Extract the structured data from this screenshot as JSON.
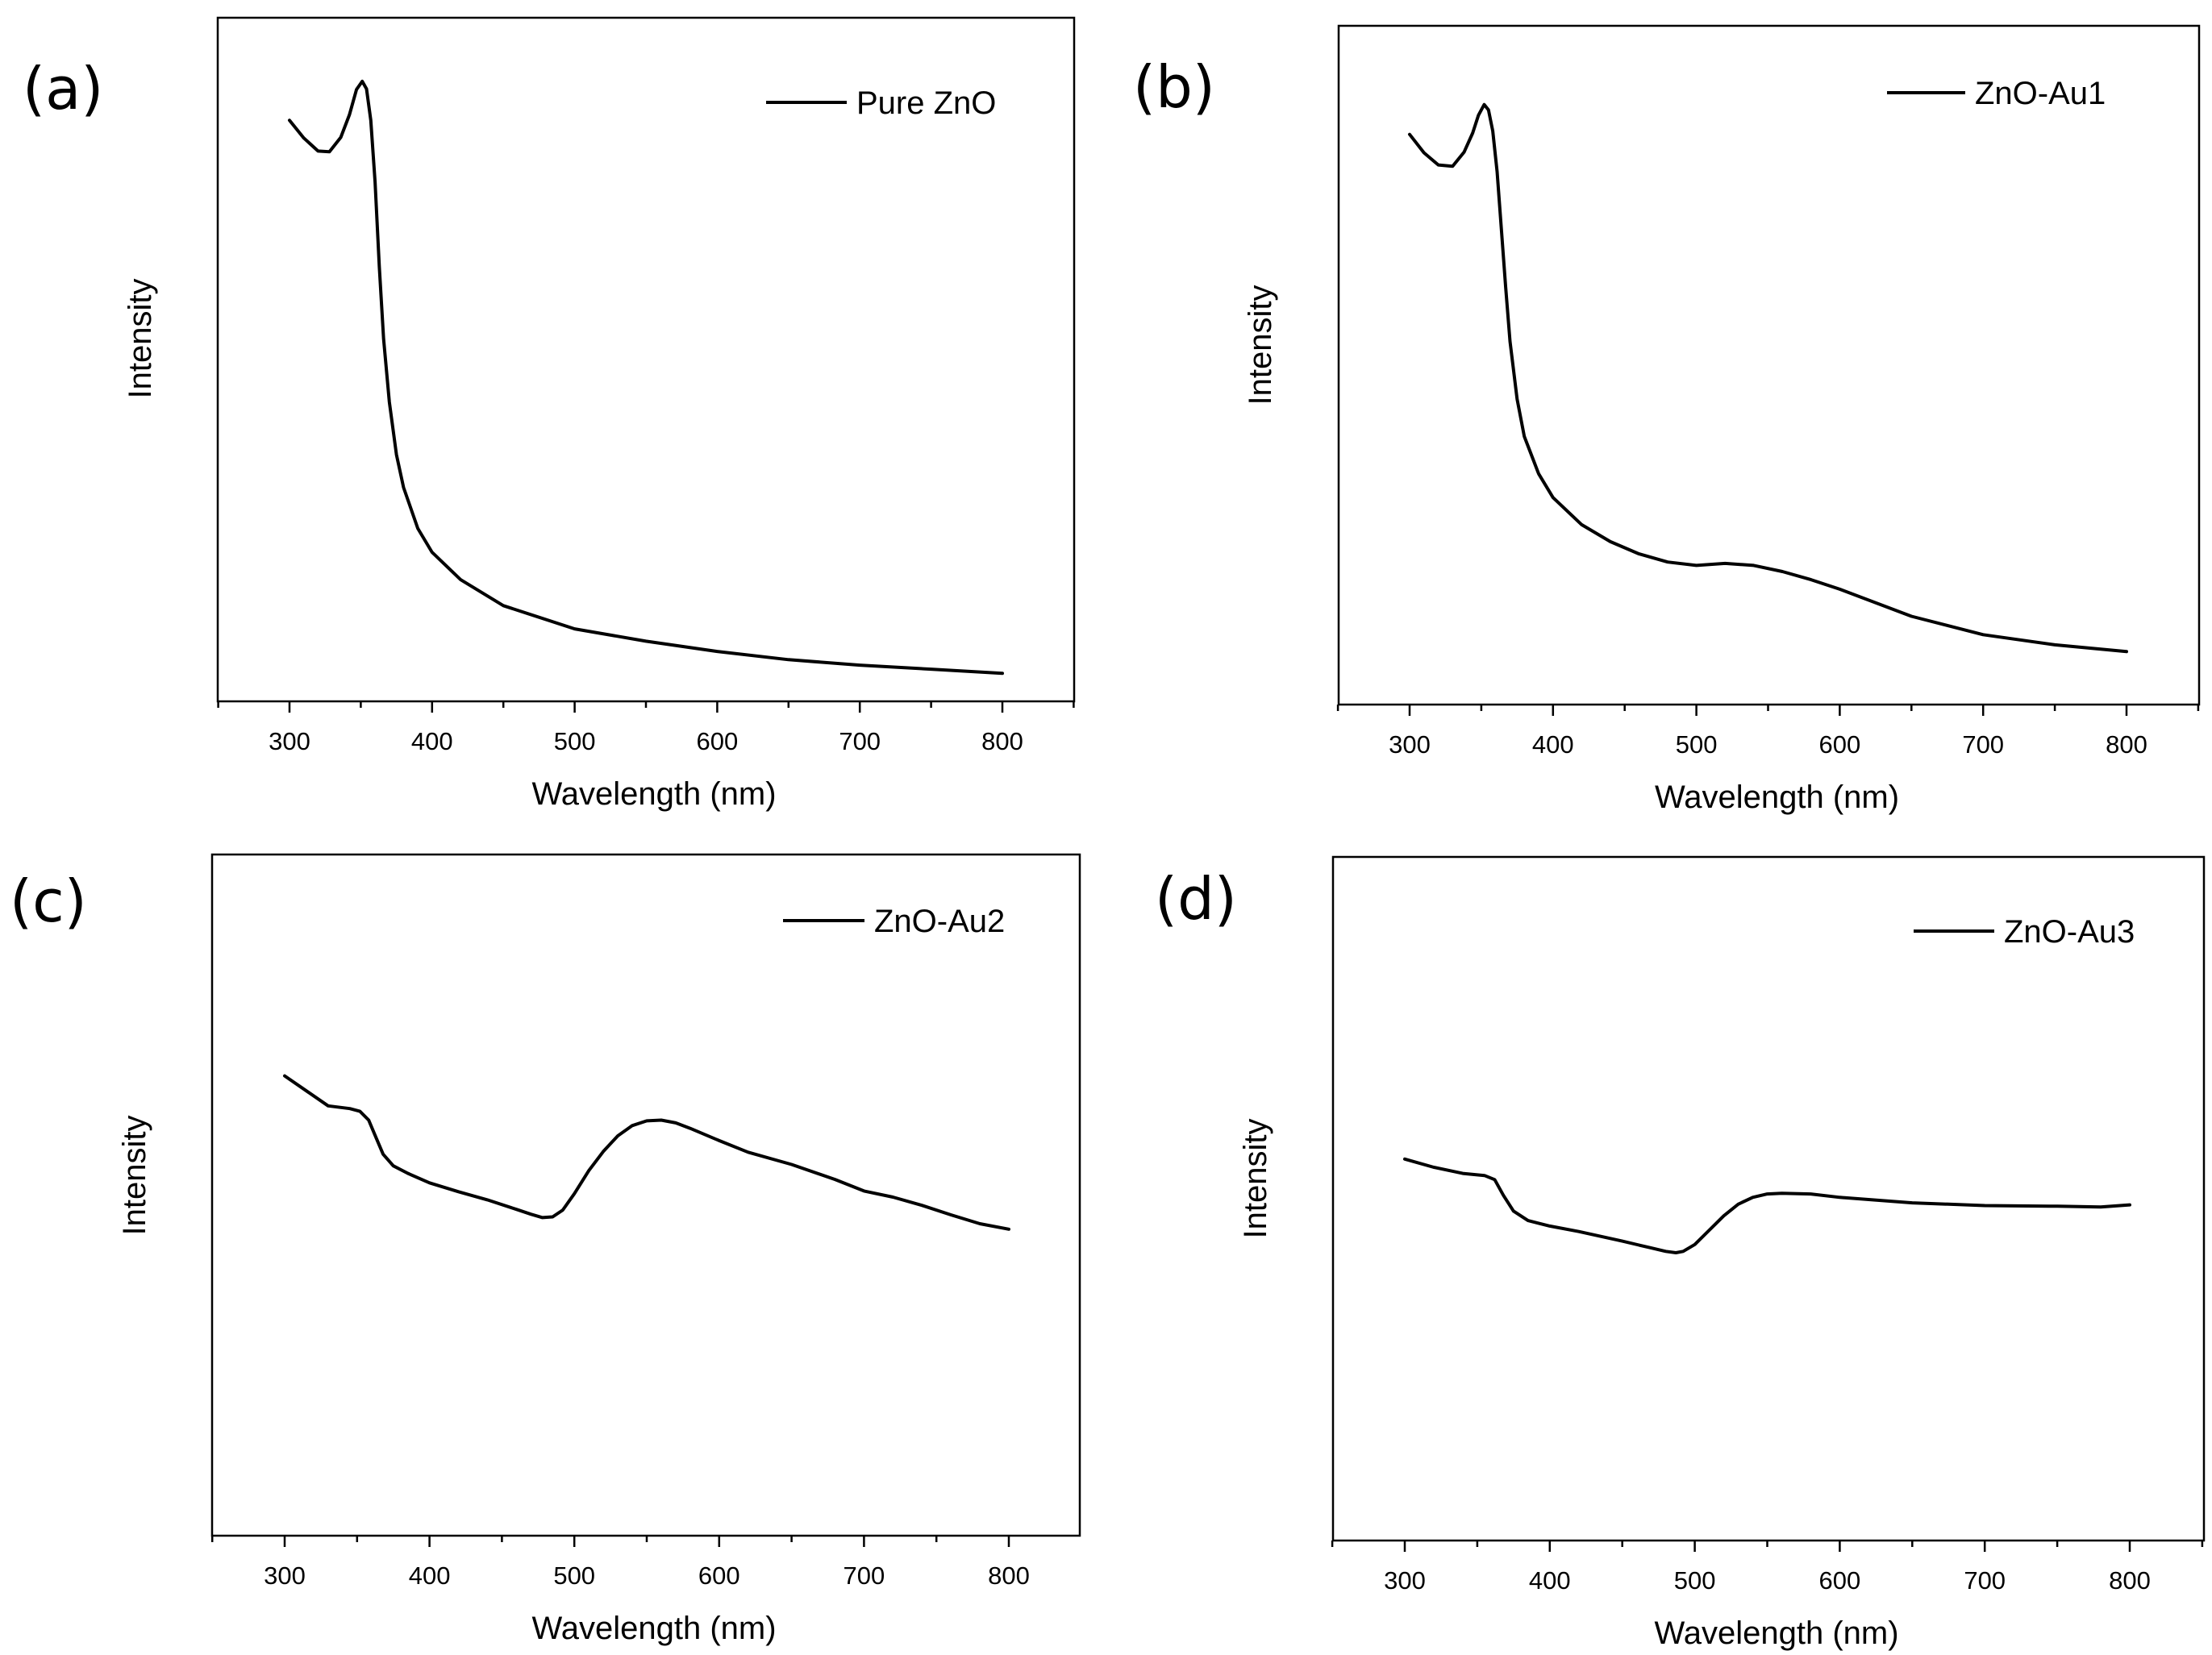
{
  "chart_data": [
    {
      "type": "line",
      "panel_label": "(a)",
      "xlabel": "Wavelength (nm)",
      "ylabel": "Intensity",
      "xlim": [
        250,
        850
      ],
      "ylim": [
        0,
        100
      ],
      "x_ticks": [
        300,
        400,
        500,
        600,
        700,
        800
      ],
      "grid": false,
      "legend_position": "top-right",
      "series": [
        {
          "name": "Pure ZnO",
          "x": [
            300,
            310,
            320,
            328,
            336,
            342,
            347,
            351,
            354,
            357,
            360,
            363,
            366,
            370,
            375,
            380,
            390,
            400,
            420,
            450,
            500,
            550,
            600,
            650,
            700,
            750,
            800
          ],
          "y": [
            85,
            82.4,
            80.5,
            80.4,
            82.5,
            85.8,
            89.5,
            90.7,
            89.6,
            85,
            76,
            63.5,
            53,
            43.8,
            36.1,
            31.3,
            25.3,
            21.8,
            17.8,
            14,
            10.6,
            8.8,
            7.3,
            6.1,
            5.3,
            4.7,
            4.1
          ]
        }
      ]
    },
    {
      "type": "line",
      "panel_label": "(b)",
      "xlabel": "Wavelength (nm)",
      "ylabel": "Intensity",
      "xlim": [
        250,
        850
      ],
      "ylim": [
        0,
        100
      ],
      "x_ticks": [
        300,
        400,
        500,
        600,
        700,
        800
      ],
      "grid": false,
      "legend_position": "top-right",
      "series": [
        {
          "name": "ZnO-Au1",
          "x": [
            300,
            310,
            320,
            330,
            338,
            344,
            348,
            352,
            355,
            358,
            361,
            364,
            367,
            370,
            375,
            380,
            390,
            400,
            420,
            440,
            460,
            480,
            500,
            520,
            540,
            560,
            580,
            600,
            650,
            700,
            750,
            800
          ],
          "y": [
            84,
            81.3,
            79.5,
            79.3,
            81.4,
            84.2,
            86.8,
            88.4,
            87.6,
            84.5,
            78.5,
            70,
            61.5,
            53.5,
            45,
            39.5,
            34,
            30.5,
            26.5,
            24,
            22.2,
            21,
            20.5,
            20.8,
            20.5,
            19.6,
            18.4,
            17,
            13,
            10.3,
            8.8,
            7.8
          ]
        }
      ]
    },
    {
      "type": "line",
      "panel_label": "(c)",
      "xlabel": "Wavelength (nm)",
      "ylabel": "Intensity",
      "xlim": [
        250,
        850
      ],
      "ylim": [
        0,
        100
      ],
      "x_ticks": [
        300,
        400,
        500,
        600,
        700,
        800
      ],
      "grid": false,
      "legend_position": "top-right",
      "series": [
        {
          "name": "ZnO-Au2",
          "x": [
            300,
            315,
            330,
            345,
            352,
            358,
            363,
            368,
            375,
            385,
            400,
            420,
            440,
            460,
            470,
            478,
            485,
            492,
            500,
            510,
            520,
            530,
            540,
            550,
            560,
            570,
            580,
            600,
            620,
            650,
            680,
            700,
            720,
            740,
            760,
            780,
            800
          ],
          "y": [
            67.5,
            65.3,
            63.1,
            62.7,
            62.3,
            61,
            58.5,
            56,
            54.3,
            53.2,
            51.8,
            50.5,
            49.3,
            47.9,
            47.2,
            46.7,
            46.8,
            47.8,
            50.2,
            53.6,
            56.4,
            58.7,
            60.2,
            60.9,
            61,
            60.6,
            59.8,
            58,
            56.3,
            54.5,
            52.3,
            50.6,
            49.7,
            48.5,
            47.1,
            45.8,
            45
          ]
        }
      ]
    },
    {
      "type": "line",
      "panel_label": "(d)",
      "xlabel": "Wavelength (nm)",
      "ylabel": "Intensity",
      "xlim": [
        250,
        850
      ],
      "ylim": [
        0,
        100
      ],
      "x_ticks": [
        300,
        400,
        500,
        600,
        700,
        800
      ],
      "grid": false,
      "legend_position": "top-right",
      "series": [
        {
          "name": "ZnO-Au3",
          "x": [
            300,
            320,
            340,
            355,
            362,
            368,
            375,
            385,
            400,
            420,
            450,
            470,
            480,
            487,
            492,
            500,
            510,
            520,
            530,
            540,
            550,
            560,
            580,
            600,
            650,
            700,
            750,
            780,
            800
          ],
          "y": [
            55.8,
            54.6,
            53.7,
            53.4,
            52.8,
            50.5,
            48.2,
            46.8,
            46,
            45.2,
            43.8,
            42.8,
            42.3,
            42.1,
            42.3,
            43.3,
            45.4,
            47.5,
            49.2,
            50.2,
            50.7,
            50.8,
            50.7,
            50.2,
            49.4,
            49,
            48.9,
            48.8,
            49.1
          ]
        }
      ]
    }
  ]
}
